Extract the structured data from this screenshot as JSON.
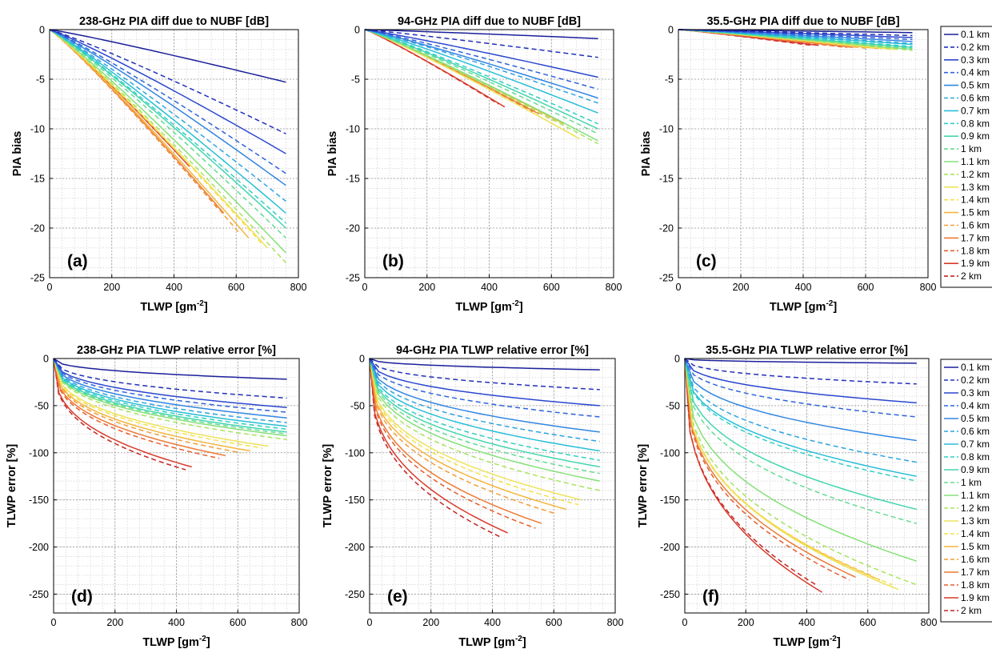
{
  "chart_data": [
    {
      "type": "line",
      "panel_label": "(a)",
      "title": "238-GHz PIA diff due to NUBF [dB]",
      "xlabel": "TLWP [gm",
      "xlabel_sup": "-2",
      "xlabel_end": "]",
      "ylabel": "PIA bias",
      "xlim": [
        0,
        800
      ],
      "ylim": [
        -25,
        0
      ],
      "xticks": [
        0,
        200,
        400,
        600,
        800
      ],
      "yticks": [
        0,
        -5,
        -10,
        -15,
        -20,
        -25
      ],
      "grid": "on",
      "series_xmax": [
        760,
        760,
        760,
        760,
        760,
        760,
        760,
        760,
        760,
        760,
        760,
        760,
        700,
        680,
        640,
        610,
        560,
        540,
        450,
        430
      ],
      "series_yend": [
        -5.3,
        -10.5,
        -12.5,
        -14.5,
        -15.7,
        -17.3,
        -18.5,
        -19.5,
        -20.0,
        -21.0,
        -22.5,
        -23.5,
        -22.0,
        -21.5,
        -21.0,
        -20.5,
        -18.5,
        -18.0,
        -13.8,
        -14.0
      ]
    },
    {
      "type": "line",
      "panel_label": "(b)",
      "title": "94-GHz PIA diff due to NUBF [dB]",
      "xlabel": "TLWP [gm",
      "xlabel_sup": "-2",
      "xlabel_end": "]",
      "ylabel": "PIA bias",
      "xlim": [
        0,
        800
      ],
      "ylim": [
        -25,
        0
      ],
      "xticks": [
        0,
        200,
        400,
        600,
        800
      ],
      "yticks": [
        0,
        -5,
        -10,
        -15,
        -20,
        -25
      ],
      "grid": "on",
      "series_xmax": [
        750,
        750,
        750,
        750,
        750,
        750,
        750,
        750,
        750,
        750,
        750,
        750,
        690,
        680,
        640,
        610,
        560,
        540,
        450,
        430
      ],
      "series_yend": [
        -0.9,
        -2.8,
        -4.8,
        -6.0,
        -6.9,
        -7.4,
        -8.4,
        -9.5,
        -10.0,
        -10.5,
        -11.2,
        -11.5,
        -11.0,
        -10.8,
        -9.5,
        -9.2,
        -8.5,
        -8.3,
        -7.8,
        -7.5
      ]
    },
    {
      "type": "line",
      "panel_label": "(c)",
      "title": "35.5-GHz PIA diff due to NUBF [dB]",
      "xlabel": "TLWP [gm",
      "xlabel_sup": "-2",
      "xlabel_end": "]",
      "ylabel": "PIA bias",
      "xlim": [
        0,
        800
      ],
      "ylim": [
        -25,
        0
      ],
      "xticks": [
        0,
        200,
        400,
        600,
        800
      ],
      "yticks": [
        0,
        -5,
        -10,
        -15,
        -20,
        -25
      ],
      "grid": "on",
      "series_xmax": [
        750,
        750,
        750,
        750,
        750,
        750,
        750,
        750,
        750,
        750,
        750,
        750,
        700,
        680,
        640,
        610,
        560,
        540,
        450,
        430
      ],
      "series_yend": [
        -0.3,
        -0.6,
        -0.8,
        -1.0,
        -1.2,
        -1.4,
        -1.5,
        -1.7,
        -1.8,
        -1.9,
        -2.0,
        -2.1,
        -2.0,
        -2.0,
        -1.9,
        -1.9,
        -1.8,
        -1.8,
        -1.6,
        -1.6
      ]
    },
    {
      "type": "line",
      "panel_label": "(d)",
      "title": "238-GHz PIA TLWP relative error [%]",
      "xlabel": "TLWP [gm",
      "xlabel_sup": "-2",
      "xlabel_end": "]",
      "ylabel": "TLWP error [%]",
      "xlim": [
        0,
        800
      ],
      "ylim": [
        -270,
        0
      ],
      "xticks": [
        0,
        200,
        400,
        600,
        800
      ],
      "yticks": [
        0,
        -50,
        -100,
        -150,
        -200,
        -250
      ],
      "grid": "on",
      "series_xmax": [
        760,
        760,
        760,
        760,
        760,
        760,
        760,
        760,
        760,
        760,
        760,
        760,
        700,
        680,
        640,
        610,
        560,
        540,
        450,
        430
      ],
      "series_yend": [
        -22,
        -42,
        -52,
        -57,
        -63,
        -68,
        -72,
        -75,
        -78,
        -80,
        -82,
        -86,
        -93,
        -95,
        -98,
        -100,
        -103,
        -106,
        -115,
        -118
      ]
    },
    {
      "type": "line",
      "panel_label": "(e)",
      "title": "94-GHz PIA TLWP relative error [%]",
      "xlabel": "TLWP [gm",
      "xlabel_sup": "-2",
      "xlabel_end": "]",
      "ylabel": "TLWP error [%]",
      "xlim": [
        0,
        800
      ],
      "ylim": [
        -270,
        0
      ],
      "xticks": [
        0,
        200,
        400,
        600,
        800
      ],
      "yticks": [
        0,
        -50,
        -100,
        -150,
        -200,
        -250
      ],
      "grid": "on",
      "series_xmax": [
        750,
        750,
        750,
        750,
        750,
        750,
        750,
        750,
        750,
        750,
        750,
        750,
        690,
        680,
        640,
        610,
        560,
        540,
        450,
        430
      ],
      "series_yend": [
        -12,
        -33,
        -50,
        -62,
        -78,
        -88,
        -98,
        -108,
        -115,
        -122,
        -130,
        -140,
        -150,
        -155,
        -160,
        -165,
        -175,
        -180,
        -185,
        -190
      ]
    },
    {
      "type": "line",
      "panel_label": "(f)",
      "title": "35.5-GHz PIA TLWP relative error [%]",
      "xlabel": "TLWP [gm",
      "xlabel_sup": "-2",
      "xlabel_end": "]",
      "ylabel": "TLWP error [%]",
      "xlim": [
        0,
        800
      ],
      "ylim": [
        -270,
        0
      ],
      "xticks": [
        0,
        200,
        400,
        600,
        800
      ],
      "yticks": [
        0,
        -50,
        -100,
        -150,
        -200,
        -250
      ],
      "grid": "on",
      "series_xmax": [
        760,
        760,
        760,
        760,
        760,
        760,
        760,
        760,
        760,
        760,
        760,
        760,
        700,
        680,
        640,
        610,
        560,
        540,
        450,
        430
      ],
      "series_yend": [
        -5,
        -27,
        -47,
        -62,
        -87,
        -110,
        -125,
        -130,
        -160,
        -175,
        -215,
        -240,
        -245,
        -240,
        -235,
        -230,
        -232,
        -235,
        -248,
        -240
      ]
    }
  ],
  "legend": {
    "placement": "right",
    "entries": [
      "0.1 km",
      "0.2 km",
      "0.3 km",
      "0.4 km",
      "0.5 km",
      "0.6 km",
      "0.7 km",
      "0.8 km",
      "0.9 km",
      "1 km",
      "1.1 km",
      "1.2 km",
      "1.3 km",
      "1.4 km",
      "1.5 km",
      "1.6 km",
      "1.7 km",
      "1.8 km",
      "1.9 km",
      "2 km"
    ],
    "styles": [
      "solid",
      "dashed",
      "solid",
      "dashed",
      "solid",
      "dashed",
      "solid",
      "dashed",
      "solid",
      "dashed",
      "solid",
      "dashed",
      "solid",
      "dashed",
      "solid",
      "dashed",
      "solid",
      "dashed",
      "solid",
      "dashed"
    ],
    "colors": [
      "#1a1f9a",
      "#2330b8",
      "#2b47cf",
      "#2f64dc",
      "#3286e2",
      "#2fa3e0",
      "#28bfd8",
      "#2fcfc4",
      "#43d6ae",
      "#63dc94",
      "#86e07a",
      "#a8e35e",
      "#ede35b",
      "#f6e04c",
      "#f4b63c",
      "#f29e38",
      "#ec7a33",
      "#e65d2e",
      "#d93a2a",
      "#c42424"
    ]
  }
}
